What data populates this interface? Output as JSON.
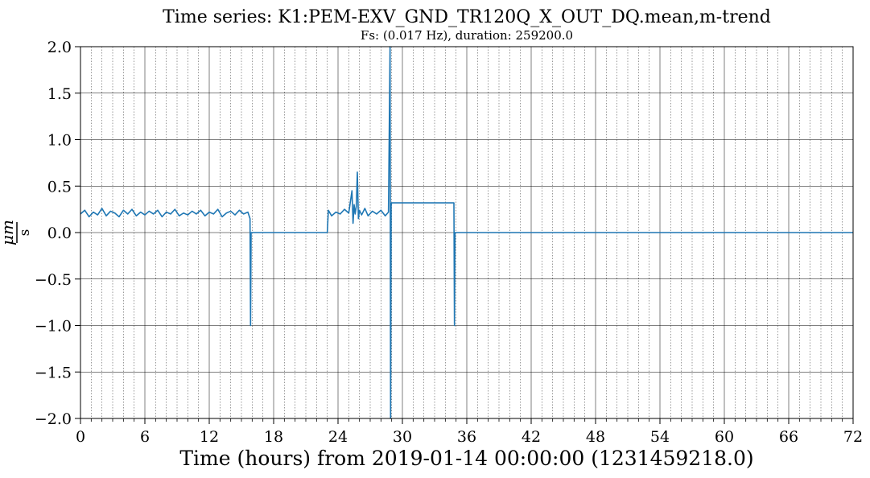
{
  "chart_data": {
    "type": "line",
    "title": "Time series:  K1:PEM-EXV_GND_TR120Q_X_OUT_DQ.mean,m-trend",
    "subtitle": "Fs: (0.017 Hz), duration: 259200.0",
    "xlabel": "Time (hours) from 2019-01-14 00:00:00 (1231459218.0)",
    "ylabel_numerator": "μm",
    "ylabel_denominator": "s",
    "xlim": [
      0,
      72
    ],
    "ylim": [
      -2.0,
      2.0
    ],
    "x_ticks": [
      0,
      6,
      12,
      18,
      24,
      30,
      36,
      42,
      48,
      54,
      60,
      66,
      72
    ],
    "x_tick_labels": [
      "0",
      "6",
      "12",
      "18",
      "24",
      "30",
      "36",
      "42",
      "48",
      "54",
      "60",
      "66",
      "72"
    ],
    "y_ticks": [
      -2.0,
      -1.5,
      -1.0,
      -0.5,
      0.0,
      0.5,
      1.0,
      1.5,
      2.0
    ],
    "y_tick_labels": [
      "−2.0",
      "−1.5",
      "−1.0",
      "−0.5",
      "0.0",
      "0.5",
      "1.0",
      "1.5",
      "2.0"
    ],
    "grid": true,
    "minor_grid_x": true,
    "line_color": "#1f77b4",
    "series": [
      {
        "x": [
          0,
          0.4,
          0.8,
          1.2,
          1.6,
          2.0,
          2.4,
          2.8,
          3.2,
          3.6,
          4.0,
          4.4,
          4.8,
          5.2,
          5.6,
          6.0,
          6.4,
          6.8,
          7.2,
          7.6,
          8.0,
          8.4,
          8.8,
          9.2,
          9.6,
          10.0,
          10.4,
          10.8,
          11.2,
          11.6,
          12.0,
          12.4,
          12.8,
          13.2,
          13.6,
          14.0,
          14.4,
          14.8,
          15.2,
          15.6,
          15.8,
          15.85,
          15.9,
          15.95,
          16.0,
          16.05,
          23.0,
          23.1,
          23.4,
          23.8,
          24.2,
          24.6,
          25.0,
          25.3,
          25.4,
          25.5,
          25.6,
          25.7,
          25.8,
          25.9,
          26.0,
          26.2,
          26.5,
          26.8,
          27.2,
          27.6,
          28.0,
          28.4,
          28.7,
          28.85,
          28.9,
          28.95,
          29.0,
          29.05,
          29.1,
          29.2,
          29.3,
          34.8,
          34.85,
          34.9,
          35.0,
          72.0
        ],
        "y": [
          0.2,
          0.24,
          0.17,
          0.22,
          0.19,
          0.26,
          0.18,
          0.23,
          0.21,
          0.17,
          0.24,
          0.2,
          0.25,
          0.18,
          0.22,
          0.19,
          0.23,
          0.2,
          0.24,
          0.17,
          0.22,
          0.2,
          0.25,
          0.18,
          0.21,
          0.19,
          0.23,
          0.2,
          0.24,
          0.18,
          0.22,
          0.2,
          0.25,
          0.17,
          0.21,
          0.23,
          0.19,
          0.24,
          0.2,
          0.22,
          0.15,
          -1.0,
          0.0,
          0.0,
          0.0,
          0.0,
          0.0,
          0.24,
          0.18,
          0.22,
          0.2,
          0.25,
          0.21,
          0.45,
          0.1,
          0.3,
          0.2,
          0.28,
          0.65,
          0.15,
          0.24,
          0.19,
          0.26,
          0.18,
          0.23,
          0.2,
          0.24,
          0.18,
          0.22,
          2.0,
          -2.0,
          0.3,
          0.32,
          0.32,
          0.32,
          0.32,
          0.32,
          0.32,
          -1.0,
          0.0,
          0.0,
          0.0
        ]
      }
    ]
  }
}
